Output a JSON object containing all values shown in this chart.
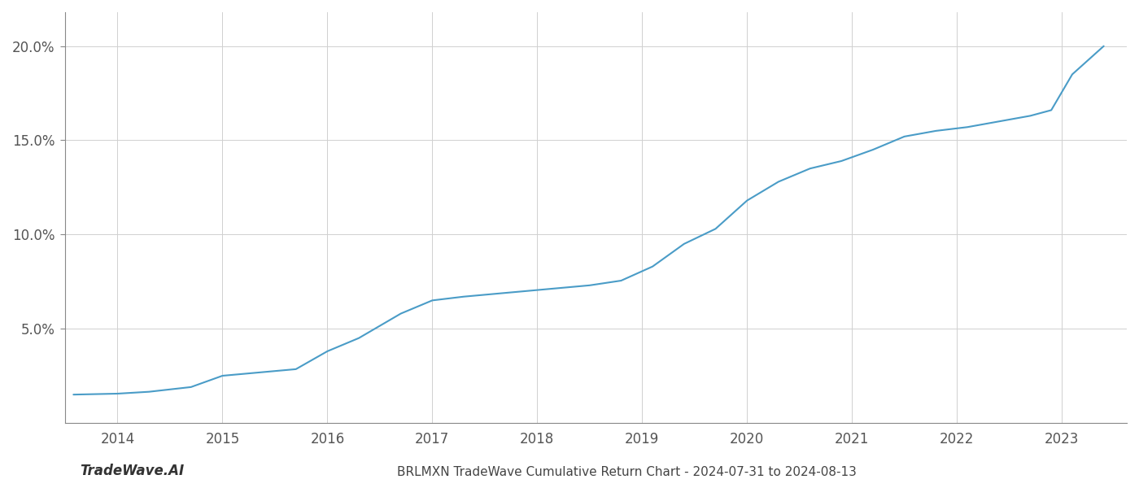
{
  "x_values": [
    2013.58,
    2014.0,
    2014.3,
    2014.7,
    2015.0,
    2015.3,
    2015.7,
    2016.0,
    2016.3,
    2016.7,
    2017.0,
    2017.3,
    2017.6,
    2017.9,
    2018.2,
    2018.5,
    2018.8,
    2019.1,
    2019.4,
    2019.7,
    2020.0,
    2020.3,
    2020.6,
    2020.9,
    2021.2,
    2021.5,
    2021.8,
    2022.1,
    2022.4,
    2022.7,
    2022.9,
    2023.1,
    2023.4
  ],
  "y_values": [
    1.5,
    1.55,
    1.65,
    1.9,
    2.5,
    2.65,
    2.85,
    3.8,
    4.5,
    5.8,
    6.5,
    6.7,
    6.85,
    7.0,
    7.15,
    7.3,
    7.55,
    8.3,
    9.5,
    10.3,
    11.8,
    12.8,
    13.5,
    13.9,
    14.5,
    15.2,
    15.5,
    15.7,
    16.0,
    16.3,
    16.6,
    18.5,
    20.0
  ],
  "line_color": "#4a9cc7",
  "line_width": 1.5,
  "background_color": "#ffffff",
  "grid_color": "#d0d0d0",
  "title_bottom": "BRLMXN TradeWave Cumulative Return Chart - 2024-07-31 to 2024-08-13",
  "watermark": "TradeWave.AI",
  "ytick_labels": [
    "5.0%",
    "10.0%",
    "15.0%",
    "20.0%"
  ],
  "ytick_values": [
    5.0,
    10.0,
    15.0,
    20.0
  ],
  "xtick_labels": [
    "2014",
    "2015",
    "2016",
    "2017",
    "2018",
    "2019",
    "2020",
    "2021",
    "2022",
    "2023"
  ],
  "xtick_values": [
    2014,
    2015,
    2016,
    2017,
    2018,
    2019,
    2020,
    2021,
    2022,
    2023
  ],
  "xlim": [
    2013.5,
    2023.62
  ],
  "ylim": [
    0.0,
    21.8
  ],
  "figsize": [
    14.0,
    6.0
  ],
  "dpi": 100
}
